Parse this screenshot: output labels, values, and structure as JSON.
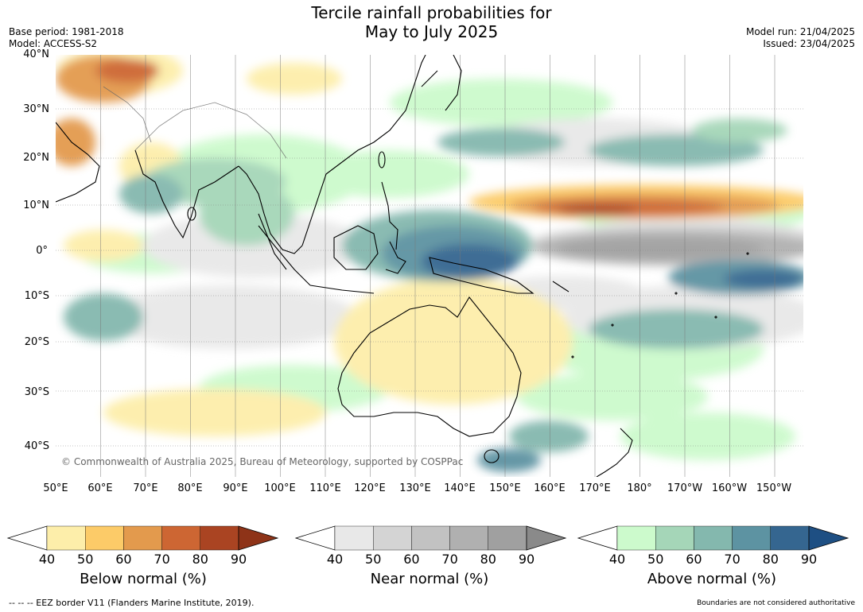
{
  "title": {
    "line1": "Tercile rainfall probabilities for",
    "line2": "May to July 2025"
  },
  "meta": {
    "base_period": "Base period: 1981-2018",
    "model": "Model: ACCESS-S2",
    "model_run": "Model run: 21/04/2025",
    "issued": "Issued: 23/04/2025"
  },
  "map": {
    "copyright": "© Commonwealth of Australia 2025, Bureau of Meteorology, supported by COSPPac",
    "lat_labels": [
      "40°N",
      "30°N",
      "20°N",
      "10°N",
      "0°",
      "10°S",
      "20°S",
      "30°S",
      "40°S"
    ],
    "lon_labels": [
      "50°E",
      "60°E",
      "70°E",
      "80°E",
      "90°E",
      "100°E",
      "110°E",
      "120°E",
      "130°E",
      "140°E",
      "150°E",
      "160°E",
      "170°E",
      "180°",
      "170°W",
      "160°W",
      "150°W"
    ]
  },
  "legends": [
    {
      "name": "Below normal (%)",
      "ticks": [
        "40",
        "50",
        "60",
        "70",
        "80",
        "90"
      ],
      "colors": [
        "#ffffff",
        "#fdeeaa",
        "#fccb68",
        "#e39a4d",
        "#cd6633",
        "#aa4422",
        "#8e3318"
      ]
    },
    {
      "name": "Near normal (%)",
      "ticks": [
        "40",
        "50",
        "60",
        "70",
        "80",
        "90"
      ],
      "colors": [
        "#ffffff",
        "#e8e8e8",
        "#d4d4d4",
        "#c2c2c2",
        "#b0b0b0",
        "#a0a0a0",
        "#8a8a8a"
      ]
    },
    {
      "name": "Above normal (%)",
      "ticks": [
        "40",
        "50",
        "60",
        "70",
        "80",
        "90"
      ],
      "colors": [
        "#ffffff",
        "#ccfacc",
        "#a5d6b8",
        "#84b8ae",
        "#5d93a2",
        "#356690",
        "#1e4f83"
      ]
    }
  ],
  "footer": {
    "eez": "--  --  -- EEZ border V11 (Flanders Marine Institute, 2019).",
    "boundaries": "Boundaries are not considered authoritative"
  }
}
